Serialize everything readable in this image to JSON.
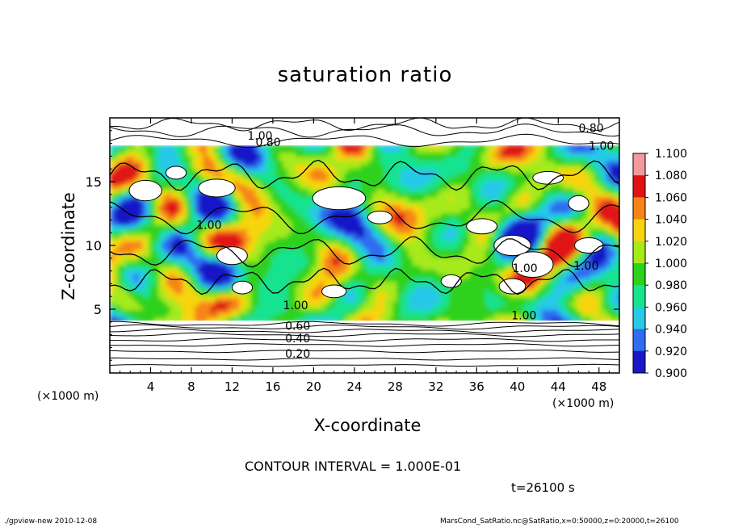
{
  "chart_data": {
    "type": "heatmap",
    "title": "saturation ratio",
    "xlabel": "X-coordinate",
    "ylabel": "Z-coordinate",
    "x_unit": "(×1000 m)",
    "y_unit": "(×1000 m)",
    "xlim": [
      0,
      50
    ],
    "ylim": [
      0,
      20
    ],
    "x_ticks": [
      "4",
      "8",
      "12",
      "16",
      "20",
      "24",
      "28",
      "32",
      "36",
      "40",
      "44",
      "48"
    ],
    "y_ticks": [
      "5",
      "10",
      "15"
    ],
    "colorbar": {
      "levels": [
        "0.900",
        "0.920",
        "0.940",
        "0.960",
        "0.980",
        "1.000",
        "1.020",
        "1.040",
        "1.060",
        "1.080",
        "1.100"
      ],
      "colors": [
        "#7a1fa0",
        "#1818c8",
        "#2f6cf0",
        "#27c8e8",
        "#19e38f",
        "#2dd21c",
        "#a6ea1a",
        "#f7d410",
        "#f68417",
        "#e01212",
        "#f49a9a"
      ]
    },
    "contour_labels": [
      "0.80",
      "0.80",
      "1.00",
      "1.00",
      "1.00",
      "1.00",
      "1.00",
      "1.00",
      "0.60",
      "0.40",
      "0.20",
      "1.00"
    ],
    "contour_interval": "CONTOUR INTERVAL = 1.000E-01",
    "time": "t=26100 s"
  },
  "footer": {
    "left": "./gpview-new  2010-12-08",
    "right": "MarsCond_SatRatio.nc@SatRatio,x=0:50000,z=0:20000,t=26100"
  }
}
